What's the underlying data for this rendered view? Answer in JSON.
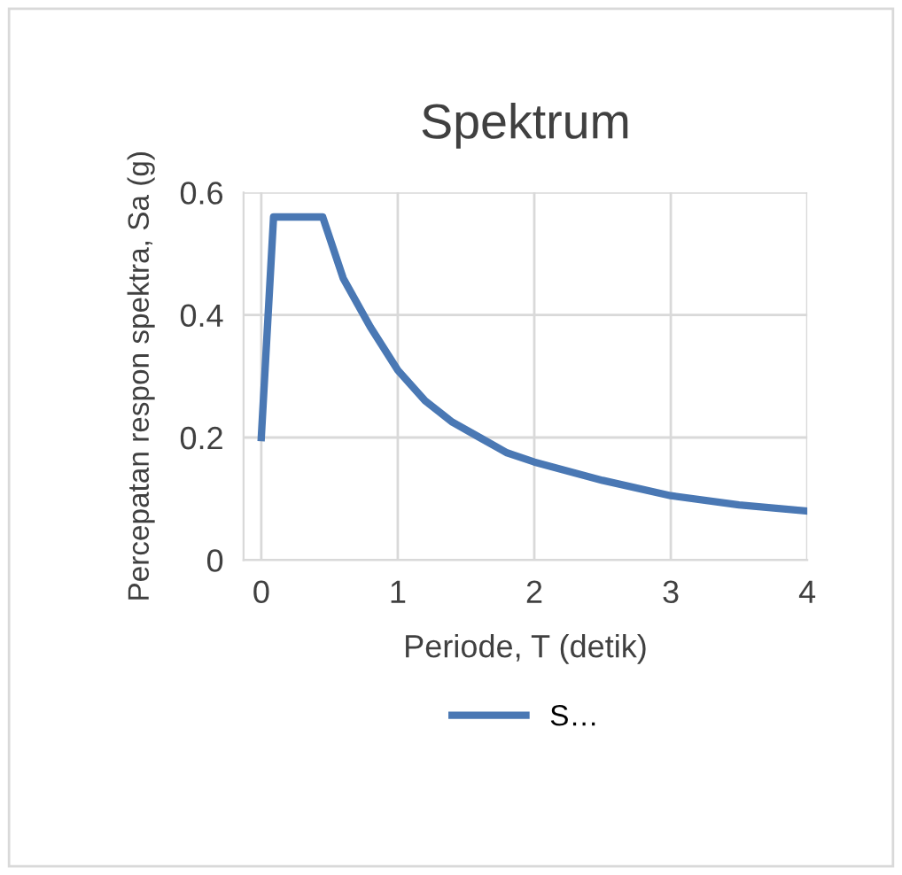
{
  "chart_data": {
    "type": "line",
    "title": "Spektrum",
    "xlabel": "Periode, T (detik)",
    "ylabel": "Percepatan respon spektra, Sa (g)",
    "series": [
      {
        "name": "S…",
        "color": "#4a78b4",
        "x": [
          0,
          0.09,
          0.45,
          0.6,
          0.8,
          1.0,
          1.2,
          1.4,
          1.6,
          1.8,
          2.0,
          2.5,
          3.0,
          3.5,
          4.0
        ],
        "values": [
          0.2,
          0.56,
          0.56,
          0.46,
          0.38,
          0.31,
          0.26,
          0.225,
          0.2,
          0.175,
          0.16,
          0.13,
          0.105,
          0.09,
          0.08
        ]
      }
    ],
    "xlim": [
      -0.13,
      4
    ],
    "xticks": [
      0,
      1,
      2,
      3,
      4
    ],
    "ylim": [
      0,
      0.6
    ],
    "yticks": [
      0,
      0.2,
      0.4,
      0.6
    ],
    "grid": true,
    "legend": "bottom",
    "marker": "none",
    "line_style": "solid"
  }
}
